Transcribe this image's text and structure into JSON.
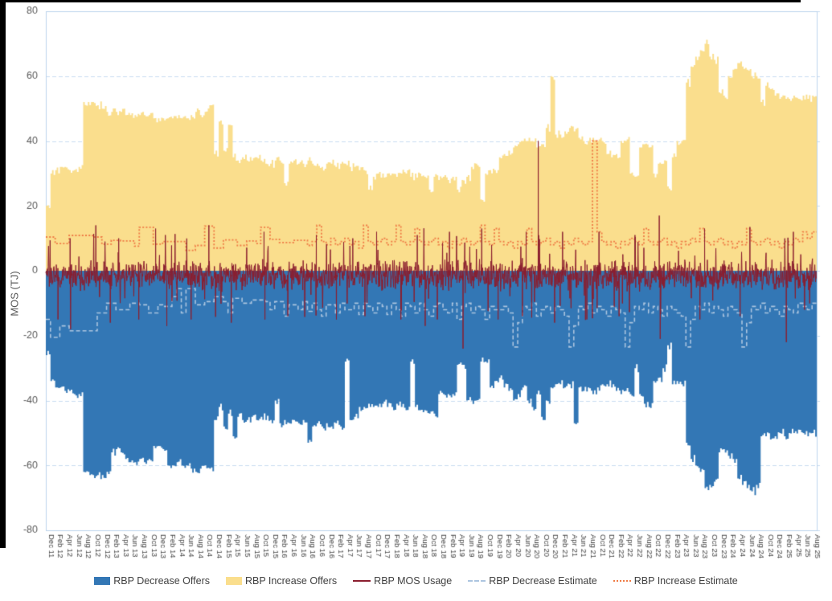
{
  "axis": {
    "y_title": "MOS (TJ)",
    "y_ticks": [
      80,
      60,
      40,
      20,
      0,
      -20,
      -40,
      -60,
      -80
    ],
    "y_min": -80,
    "y_max": 80,
    "text_color": "#595959",
    "x_label_color": "#404040",
    "grid_color": "#c9dcf0",
    "border_color": "#bcd4ec",
    "x_tick_labels": [
      "Dec 11",
      "Feb 12",
      "Apr 12",
      "Jun 12",
      "Aug 12",
      "Oct 12",
      "Dec 12",
      "Feb 13",
      "Apr 13",
      "Jun 13",
      "Aug 13",
      "Oct 13",
      "Dec 13",
      "Feb 14",
      "Apr 14",
      "Jun 14",
      "Aug 14",
      "Oct 14",
      "Dec 14",
      "Feb 15",
      "Apr 15",
      "Jun 15",
      "Aug 15",
      "Oct 15",
      "Dec 15",
      "Feb 16",
      "Apr 16",
      "Jun 16",
      "Aug 16",
      "Oct 16",
      "Dec 16",
      "Feb 17",
      "Apr 17",
      "Jun 17",
      "Aug 17",
      "Oct 17",
      "Dec 17",
      "Feb 18",
      "Apr 18",
      "Jun 18",
      "Aug 18",
      "Oct 18",
      "Dec 18",
      "Feb 19",
      "Apr 19",
      "Jun 19",
      "Aug 19",
      "Oct 19",
      "Dec 19",
      "Feb 20",
      "Apr 20",
      "Jun 20",
      "Aug 20",
      "Oct 20",
      "Dec 20",
      "Feb 21",
      "Apr 21",
      "Jun 21",
      "Aug 21",
      "Oct 21",
      "Dec 21",
      "Feb 22",
      "Apr 22",
      "Jun 22",
      "Aug 22",
      "Oct 22",
      "Dec 22",
      "Feb 23",
      "Apr 23",
      "Jun 23",
      "Aug 23",
      "Oct 23",
      "Dec 23",
      "Feb 24",
      "Apr 24",
      "Jun 24",
      "Aug 24",
      "Oct 24",
      "Dec 24",
      "Feb 25",
      "Apr 25",
      "Jun 25",
      "Aug 25"
    ],
    "x_tick_every_months": 2
  },
  "legend": [
    {
      "label": "RBP Decrease Offers",
      "swatch": "area",
      "color": "#3377b5"
    },
    {
      "label": "RBP Increase Offers",
      "swatch": "area",
      "color": "#fade8d"
    },
    {
      "label": "RBP MOS Usage",
      "swatch": "line-solid",
      "color": "#8b1e2f"
    },
    {
      "label": "RBP Decrease Estimate",
      "swatch": "line-dashed",
      "color": "#acc5e0"
    },
    {
      "label": "RBP Increase Estimate",
      "swatch": "line-dotted",
      "color": "#ef7b45"
    }
  ],
  "chart_data": {
    "type": "area",
    "title": "",
    "ylabel": "MOS (TJ)",
    "ylim": [
      -80,
      80
    ],
    "x_start": "Dec 2011",
    "x_end": "Aug 2025",
    "x_unit": "month",
    "months_total": 165,
    "grid": true,
    "legend_position": "bottom",
    "render": {
      "area_substeps": 3,
      "area_jitter": 1.3,
      "area_seed": 5
    },
    "series": [
      {
        "name": "RBP Increase Offers",
        "type": "area",
        "style": "fill",
        "color": "#fade8d",
        "monthly_values": [
          20,
          30,
          31,
          32,
          32,
          31,
          31,
          32,
          52,
          52,
          52,
          51,
          50,
          49,
          49,
          49,
          49,
          48,
          48,
          48,
          48,
          48,
          48,
          47,
          47,
          47,
          47,
          47,
          47,
          47,
          47,
          48,
          49,
          48,
          49,
          51,
          36,
          46,
          37,
          45,
          35,
          34,
          35,
          34,
          34,
          35,
          34,
          33,
          33,
          34,
          34,
          27,
          33,
          34,
          33,
          33,
          34,
          33,
          33,
          32,
          33,
          33,
          32,
          33,
          33,
          32,
          32,
          31,
          31,
          25,
          29,
          30,
          30,
          30,
          30,
          29,
          30,
          30,
          29,
          30,
          30,
          29,
          25,
          29,
          28,
          29,
          28,
          29,
          25,
          28,
          29,
          32,
          33,
          22,
          30,
          31,
          31,
          35,
          36,
          37,
          38,
          39,
          40,
          40,
          40,
          38,
          39,
          44,
          60,
          42,
          42,
          43,
          44,
          43,
          41,
          40,
          40,
          41,
          40,
          40,
          36,
          35,
          36,
          40,
          40,
          30,
          29,
          38,
          39,
          38,
          30,
          33,
          33,
          26,
          35,
          40,
          40,
          58,
          63,
          66,
          68,
          70,
          66,
          65,
          55,
          54,
          60,
          62,
          64,
          63,
          62,
          60,
          60,
          52,
          57,
          56,
          54,
          53,
          54,
          53,
          54,
          53,
          54,
          53,
          54
        ]
      },
      {
        "name": "RBP Decrease Offers",
        "type": "area",
        "style": "fill",
        "color": "#3377b5",
        "monthly_values": [
          -26,
          -34,
          -36,
          -36,
          -37,
          -37,
          -38,
          -38,
          -62,
          -62,
          -63,
          -63,
          -63,
          -62,
          -56,
          -55,
          -56,
          -58,
          -59,
          -59,
          -58,
          -59,
          -58,
          -54,
          -54,
          -55,
          -60,
          -60,
          -59,
          -60,
          -60,
          -61,
          -62,
          -61,
          -60,
          -61,
          -46,
          -42,
          -48,
          -44,
          -51,
          -45,
          -46,
          -46,
          -45,
          -46,
          -45,
          -46,
          -46,
          -40,
          -47,
          -46,
          -47,
          -46,
          -47,
          -46,
          -53,
          -48,
          -47,
          -48,
          -47,
          -48,
          -47,
          -48,
          -28,
          -46,
          -45,
          -42,
          -42,
          -41,
          -42,
          -42,
          -41,
          -42,
          -42,
          -41,
          -42,
          -43,
          -28,
          -42,
          -43,
          -43,
          -44,
          -44,
          -38,
          -38,
          -38,
          -38,
          -29,
          -29,
          -40,
          -40,
          -40,
          -28,
          -28,
          -36,
          -34,
          -33,
          -36,
          -37,
          -40,
          -38,
          -36,
          -40,
          -42,
          -38,
          -45,
          -40,
          -36,
          -35,
          -35,
          -36,
          -35,
          -47,
          -36,
          -37,
          -36,
          -38,
          -36,
          -35,
          -35,
          -36,
          -37,
          -38,
          -37,
          -38,
          -30,
          -38,
          -41,
          -42,
          -34,
          -33,
          -30,
          -23,
          -35,
          -34,
          -35,
          -53,
          -58,
          -60,
          -62,
          -67,
          -66,
          -65,
          -56,
          -55,
          -57,
          -58,
          -64,
          -66,
          -67,
          -68,
          -66,
          -51,
          -51,
          -52,
          -51,
          -50,
          -51,
          -50,
          -50,
          -49,
          -50,
          -51,
          -50
        ]
      },
      {
        "name": "RBP Increase Estimate",
        "type": "line",
        "style": "dotted",
        "color": "#ef7b45",
        "monthly_values": [
          10.4,
          10.4,
          8.4,
          8.4,
          8.4,
          10.9,
          10.9,
          10.9,
          10.9,
          10.9,
          10.4,
          10.4,
          8.2,
          8.2,
          9.4,
          9.4,
          9.2,
          9.2,
          9.2,
          7.6,
          13.4,
          13.4,
          13.4,
          8.2,
          8.2,
          9,
          9,
          9,
          9,
          9,
          6.3,
          6.3,
          7.8,
          7.8,
          13.8,
          13.8,
          7,
          7,
          9.5,
          9.5,
          9.5,
          7.8,
          7.8,
          9.2,
          9.2,
          8.4,
          13.4,
          13.4,
          9.7,
          9.7,
          8.7,
          8.7,
          8.7,
          9.4,
          9.4,
          9.4,
          7.8,
          9,
          14,
          9,
          8,
          10,
          8,
          9,
          10,
          8,
          9,
          7,
          14,
          9,
          8,
          9,
          10,
          8,
          9,
          14,
          9,
          8,
          9,
          13,
          9,
          8,
          9,
          10,
          8,
          9,
          7,
          9,
          8,
          10,
          9,
          8,
          9,
          14,
          9,
          8,
          13,
          9,
          8,
          9,
          7,
          9,
          8,
          13,
          9,
          8,
          9,
          10,
          8,
          9,
          7,
          9,
          8,
          10,
          9,
          8,
          9,
          40,
          12,
          9,
          8,
          9,
          7,
          9,
          8,
          10,
          9,
          8,
          13,
          9,
          8,
          9,
          10,
          8,
          9,
          7,
          9,
          8,
          10,
          9,
          13,
          9,
          8,
          9,
          10,
          8,
          9,
          7,
          9,
          8,
          13,
          9,
          8,
          9,
          10,
          8,
          9,
          7,
          9,
          8,
          10,
          9,
          12,
          10,
          12
        ]
      },
      {
        "name": "RBP Decrease Estimate",
        "type": "line",
        "style": "dashed",
        "color": "#acc5e0",
        "monthly_values": [
          -15,
          -20.5,
          -20.5,
          -17,
          -17,
          -18.5,
          -18.5,
          -18.5,
          -18.5,
          -18.5,
          -18.5,
          -13,
          -13,
          -10,
          -10,
          -12,
          -12,
          -12,
          -10,
          -10,
          -10.5,
          -10.5,
          -13,
          -13,
          -10.5,
          -11,
          -11,
          -8,
          -5.5,
          -13,
          -5.5,
          -5.5,
          -10.5,
          -10.5,
          -9.5,
          -9.5,
          -8,
          -8,
          -9.5,
          -13,
          -8.5,
          -8.5,
          -10,
          -10,
          -9,
          -9,
          -9,
          -9.5,
          -12,
          -9.5,
          -9.5,
          -14,
          -10.5,
          -10.5,
          -12,
          -9.5,
          -12.5,
          -10,
          -12,
          -14,
          -10.5,
          -10.5,
          -13,
          -10,
          -12,
          -12,
          -10,
          -13.5,
          -10,
          -11,
          -13,
          -10,
          -11,
          -13.5,
          -10,
          -12,
          -14,
          -10,
          -11,
          -13,
          -10,
          -12,
          -14,
          -11,
          -10,
          -12,
          -13,
          -10,
          -15,
          -11,
          -10,
          -13,
          -11,
          -12,
          -15,
          -11,
          -12,
          -12,
          -11,
          -13,
          -23.5,
          -16,
          -11,
          -12,
          -10,
          -14,
          -12,
          -11,
          -13,
          -11,
          -12,
          -14,
          -23.5,
          -17,
          -11,
          -12,
          -10,
          -13,
          -11,
          -12,
          -14,
          -11,
          -12,
          -13,
          -23.5,
          -16,
          -11,
          -12,
          -10,
          -13,
          -11,
          -12,
          -14,
          -11,
          -12,
          -13,
          -14,
          -23.5,
          -15,
          -11,
          -12,
          -10,
          -13,
          -11,
          -12,
          -14,
          -11,
          -12,
          -13,
          -23.5,
          -16,
          -11,
          -12,
          -10,
          -13,
          -11,
          -12,
          -14,
          -11,
          -12,
          -13,
          -10,
          -11,
          -12,
          -10
        ]
      },
      {
        "name": "RBP MOS Usage",
        "type": "line",
        "style": "solid",
        "color": "#8b1e2f",
        "noise": {
          "mean": -1.3,
          "spread": 5.2,
          "tail_prob": 0.06,
          "tail_extra": 8,
          "points_per_month": 12,
          "seed": 13
        },
        "spikes": [
          [
            2.6,
            -15
          ],
          [
            5.2,
            10
          ],
          [
            5.3,
            -18
          ],
          [
            10.7,
            14
          ],
          [
            13.8,
            -16
          ],
          [
            15.6,
            10
          ],
          [
            19.9,
            -15
          ],
          [
            23.5,
            13
          ],
          [
            25.9,
            -17
          ],
          [
            31.1,
            -15
          ],
          [
            34.9,
            14
          ],
          [
            39.7,
            -16
          ],
          [
            46.7,
            12
          ],
          [
            46.9,
            -15
          ],
          [
            51.8,
            -14
          ],
          [
            57.9,
            11
          ],
          [
            62.2,
            -15
          ],
          [
            65.7,
            10
          ],
          [
            68.3,
            -14
          ],
          [
            70.8,
            12
          ],
          [
            76,
            -15
          ],
          [
            79.5,
            11
          ],
          [
            81.2,
            -17
          ],
          [
            83.8,
            -15
          ],
          [
            86.4,
            12
          ],
          [
            89.3,
            -24
          ],
          [
            93.3,
            13
          ],
          [
            96.8,
            -15
          ],
          [
            102,
            -14
          ],
          [
            102.8,
            12
          ],
          [
            105.4,
            40
          ],
          [
            108.9,
            -16
          ],
          [
            110.6,
            12
          ],
          [
            115.8,
            -15
          ],
          [
            118.4,
            12
          ],
          [
            122.7,
            -14
          ],
          [
            126.1,
            11
          ],
          [
            131.3,
            17
          ],
          [
            131.5,
            -21
          ],
          [
            140,
            -15
          ],
          [
            141,
            13
          ],
          [
            148.6,
            -14
          ],
          [
            150.7,
            13.5
          ],
          [
            158.5,
            -22
          ],
          [
            160,
            12
          ],
          [
            162.4,
            -12
          ]
        ]
      }
    ]
  }
}
